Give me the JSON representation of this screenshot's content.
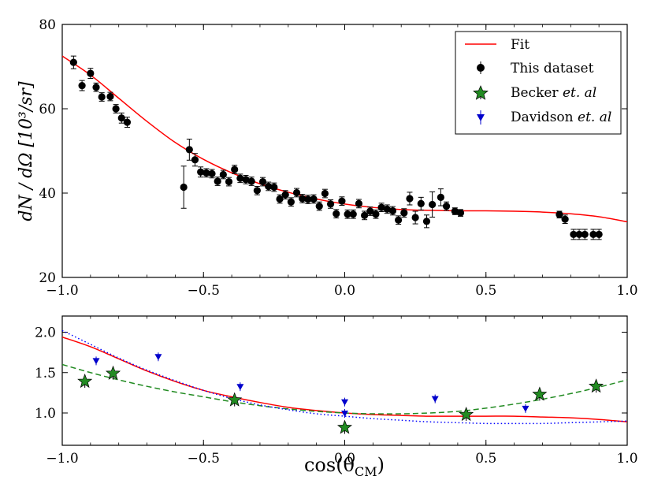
{
  "chart_data": [
    {
      "type": "scatter",
      "panel": "top",
      "xlabel": "",
      "ylabel": "dN / dΩ [10³/sr]",
      "xlim": [
        -1.0,
        1.0
      ],
      "ylim": [
        20,
        80
      ],
      "xticks": [
        "−1.0",
        "−0.5",
        "0.0",
        "0.5",
        "1.0"
      ],
      "yticks": [
        "20",
        "40",
        "60",
        "80"
      ],
      "legend": {
        "position": "top-right",
        "entries": [
          {
            "label": "Fit",
            "marker": "line",
            "color": "#ff0000"
          },
          {
            "label": "This dataset",
            "marker": "circle",
            "color": "#000000"
          },
          {
            "label": "Becker",
            "label_italic": "et. al",
            "marker": "star",
            "color": "#228b22"
          },
          {
            "label": "Davidson",
            "label_italic": "et. al",
            "marker": "triangle-down",
            "color": "#0000cc"
          }
        ]
      },
      "series": [
        {
          "name": "Fit",
          "kind": "line",
          "color": "#ff0000",
          "x": [
            -1.0,
            -0.9,
            -0.8,
            -0.7,
            -0.6,
            -0.5,
            -0.4,
            -0.3,
            -0.2,
            -0.1,
            0.0,
            0.1,
            0.2,
            0.3,
            0.4,
            0.5,
            0.6,
            0.7,
            0.8,
            0.9,
            1.0
          ],
          "y": [
            72.5,
            68.0,
            62.5,
            57.0,
            52.0,
            48.0,
            44.8,
            42.2,
            40.2,
            38.6,
            37.4,
            36.6,
            36.1,
            35.9,
            35.8,
            35.8,
            35.7,
            35.5,
            35.1,
            34.4,
            33.2
          ]
        },
        {
          "name": "This dataset",
          "kind": "points",
          "marker": "circle",
          "color": "#000000",
          "x": [
            -0.96,
            -0.93,
            -0.9,
            -0.88,
            -0.86,
            -0.83,
            -0.81,
            -0.79,
            -0.77,
            -0.57,
            -0.55,
            -0.53,
            -0.51,
            -0.49,
            -0.47,
            -0.45,
            -0.43,
            -0.41,
            -0.39,
            -0.37,
            -0.35,
            -0.33,
            -0.31,
            -0.29,
            -0.27,
            -0.25,
            -0.23,
            -0.21,
            -0.19,
            -0.17,
            -0.15,
            -0.13,
            -0.11,
            -0.09,
            -0.07,
            -0.05,
            -0.03,
            -0.01,
            0.01,
            0.03,
            0.05,
            0.07,
            0.09,
            0.11,
            0.13,
            0.15,
            0.17,
            0.19,
            0.21,
            0.23,
            0.25,
            0.27,
            0.29,
            0.31,
            0.34,
            0.36,
            0.39,
            0.41,
            0.76,
            0.78,
            0.81,
            0.83,
            0.85,
            0.88,
            0.9
          ],
          "y": [
            71.0,
            65.5,
            68.4,
            65.1,
            62.8,
            62.9,
            60.0,
            57.8,
            56.8,
            41.4,
            50.3,
            47.9,
            45.0,
            44.8,
            44.6,
            42.8,
            44.4,
            42.7,
            45.6,
            43.5,
            43.2,
            42.8,
            40.6,
            42.7,
            41.6,
            41.4,
            38.6,
            39.6,
            37.9,
            40.1,
            38.7,
            38.5,
            38.6,
            36.9,
            39.9,
            37.4,
            35.1,
            38.1,
            35.0,
            35.0,
            37.5,
            34.7,
            35.7,
            35.0,
            36.6,
            36.2,
            35.8,
            33.6,
            35.3,
            38.7,
            34.2,
            37.5,
            33.3,
            37.3,
            39.0,
            36.9,
            35.7,
            35.3,
            34.9,
            33.8,
            30.2,
            30.2,
            30.2,
            30.2,
            30.2
          ],
          "yerr": [
            1.5,
            1.2,
            1.2,
            1.0,
            1.0,
            1.0,
            1.0,
            1.2,
            1.2,
            5.0,
            2.5,
            1.5,
            1.2,
            1.0,
            1.0,
            1.0,
            1.0,
            1.0,
            1.0,
            1.0,
            1.0,
            1.0,
            1.0,
            1.0,
            1.0,
            1.0,
            1.0,
            1.0,
            1.0,
            1.0,
            1.0,
            1.0,
            1.0,
            1.0,
            1.0,
            1.0,
            1.0,
            1.0,
            1.0,
            1.0,
            1.0,
            1.0,
            1.0,
            1.0,
            1.0,
            1.0,
            1.0,
            1.0,
            1.0,
            1.5,
            1.5,
            1.5,
            1.5,
            3.0,
            2.0,
            1.0,
            0.8,
            0.8,
            0.8,
            1.0,
            1.2,
            1.2,
            1.2,
            1.2,
            1.2
          ]
        }
      ]
    },
    {
      "type": "scatter",
      "panel": "bottom",
      "xlabel": "cos(θ",
      "xlabel_sub": "CM",
      "xlabel_close": ")",
      "ylabel": "",
      "xlim": [
        -1.0,
        1.0
      ],
      "ylim": [
        0.6,
        2.2
      ],
      "xticks": [
        "−1.0",
        "−0.5",
        "0.0",
        "0.5",
        "1.0"
      ],
      "yticks": [
        "1.0",
        "1.5",
        "2.0"
      ],
      "series": [
        {
          "name": "Fit",
          "kind": "line",
          "color": "#ff0000",
          "x": [
            -1.0,
            -0.9,
            -0.8,
            -0.7,
            -0.6,
            -0.5,
            -0.4,
            -0.3,
            -0.2,
            -0.1,
            0.0,
            0.1,
            0.2,
            0.3,
            0.4,
            0.5,
            0.6,
            0.7,
            0.8,
            0.9,
            1.0
          ],
          "y": [
            1.94,
            1.82,
            1.67,
            1.52,
            1.39,
            1.28,
            1.2,
            1.13,
            1.07,
            1.03,
            1.0,
            0.98,
            0.97,
            0.96,
            0.96,
            0.96,
            0.96,
            0.95,
            0.94,
            0.92,
            0.89
          ]
        },
        {
          "name": "Becker fit",
          "kind": "dashed",
          "color": "#228b22",
          "x": [
            -1.0,
            -0.9,
            -0.8,
            -0.7,
            -0.6,
            -0.5,
            -0.4,
            -0.3,
            -0.2,
            -0.1,
            0.0,
            0.1,
            0.2,
            0.3,
            0.4,
            0.5,
            0.6,
            0.7,
            0.8,
            0.9,
            1.0
          ],
          "y": [
            1.6,
            1.5,
            1.41,
            1.33,
            1.26,
            1.2,
            1.14,
            1.09,
            1.05,
            1.02,
            1.0,
            0.99,
            0.99,
            1.0,
            1.02,
            1.06,
            1.11,
            1.17,
            1.24,
            1.32,
            1.41
          ]
        },
        {
          "name": "Davidson fit",
          "kind": "dotted",
          "color": "#0000ff",
          "x": [
            -1.0,
            -0.9,
            -0.8,
            -0.7,
            -0.6,
            -0.5,
            -0.4,
            -0.3,
            -0.2,
            -0.1,
            0.0,
            0.1,
            0.2,
            0.3,
            0.4,
            0.5,
            0.6,
            0.7,
            0.8,
            0.9,
            1.0
          ],
          "y": [
            2.02,
            1.85,
            1.68,
            1.53,
            1.4,
            1.28,
            1.18,
            1.1,
            1.04,
            0.99,
            0.96,
            0.93,
            0.91,
            0.89,
            0.88,
            0.87,
            0.87,
            0.87,
            0.88,
            0.89,
            0.9
          ]
        },
        {
          "name": "Becker et. al",
          "kind": "points",
          "marker": "star",
          "color": "#228b22",
          "x": [
            -0.92,
            -0.82,
            -0.39,
            0.0,
            0.43,
            0.69,
            0.89
          ],
          "y": [
            1.39,
            1.49,
            1.16,
            0.82,
            0.98,
            1.23,
            1.33
          ]
        },
        {
          "name": "Davidson et. al",
          "kind": "points",
          "marker": "triangle-down",
          "color": "#0000cc",
          "x": [
            -0.88,
            -0.66,
            -0.37,
            0.0,
            0.0,
            0.32,
            0.64
          ],
          "y": [
            1.64,
            1.69,
            1.32,
            1.13,
            0.99,
            1.17,
            1.05
          ]
        }
      ]
    }
  ]
}
